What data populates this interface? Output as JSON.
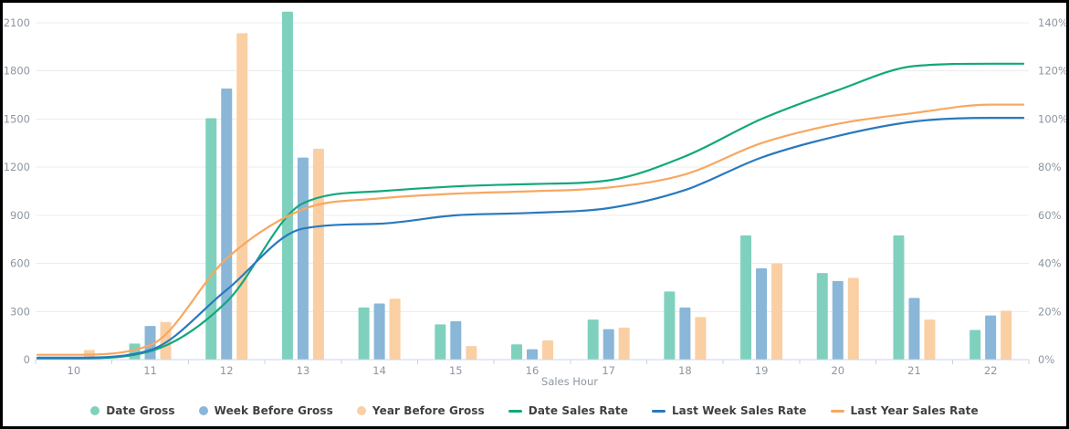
{
  "chart_data": {
    "type": "combo-bar-line",
    "title": "",
    "xlabel": "Sales Hour",
    "categories": [
      "10",
      "11",
      "12",
      "13",
      "14",
      "15",
      "16",
      "17",
      "18",
      "19",
      "20",
      "21",
      "22"
    ],
    "bar_series": [
      {
        "name": "Date Gross",
        "color": "#7FD1BE",
        "axis": "left",
        "values": [
          10,
          100,
          1505,
          2170,
          325,
          220,
          95,
          250,
          425,
          775,
          540,
          775,
          185
        ]
      },
      {
        "name": "Week Before Gross",
        "color": "#8AB6D8",
        "axis": "left",
        "values": [
          8,
          210,
          1690,
          1260,
          350,
          240,
          65,
          190,
          325,
          570,
          490,
          385,
          275
        ]
      },
      {
        "name": "Year Before Gross",
        "color": "#FACFA3",
        "axis": "left",
        "values": [
          60,
          235,
          2035,
          1315,
          380,
          85,
          120,
          200,
          265,
          600,
          510,
          250,
          305
        ]
      }
    ],
    "line_series": [
      {
        "name": "Date Sales Rate",
        "color": "#12A87C",
        "axis": "right",
        "values": [
          0.5,
          3.5,
          24,
          65,
          70,
          72,
          73,
          74.5,
          84.5,
          100,
          112,
          122,
          123
        ]
      },
      {
        "name": "Last Week Sales Rate",
        "color": "#2979BE",
        "axis": "right",
        "values": [
          0.8,
          4,
          29,
          54.5,
          56.5,
          60,
          61,
          63,
          70.5,
          84,
          93,
          99,
          100.5
        ]
      },
      {
        "name": "Last Year Sales Rate",
        "color": "#F7A861",
        "axis": "right",
        "values": [
          2,
          6,
          42,
          62.5,
          67,
          69,
          70,
          71.5,
          77,
          90,
          98,
          102.5,
          106
        ]
      }
    ],
    "left_axis": {
      "min": 0,
      "max": 2100,
      "step": 300,
      "tick_labels": [
        "0",
        "300",
        "600",
        "900",
        "1200",
        "1500",
        "1800",
        "2100"
      ]
    },
    "right_axis": {
      "min": 0,
      "max": 140,
      "step": 20,
      "suffix": "%",
      "tick_labels": [
        "0%",
        "20%",
        "40%",
        "60%",
        "80%",
        "100%",
        "120%",
        "140%"
      ]
    },
    "legend_position": "bottom",
    "grid": true,
    "grid_color": "#ECECEC",
    "axis_line_color": "#C9D4E8",
    "axis_label_color": "#8E96A0"
  }
}
